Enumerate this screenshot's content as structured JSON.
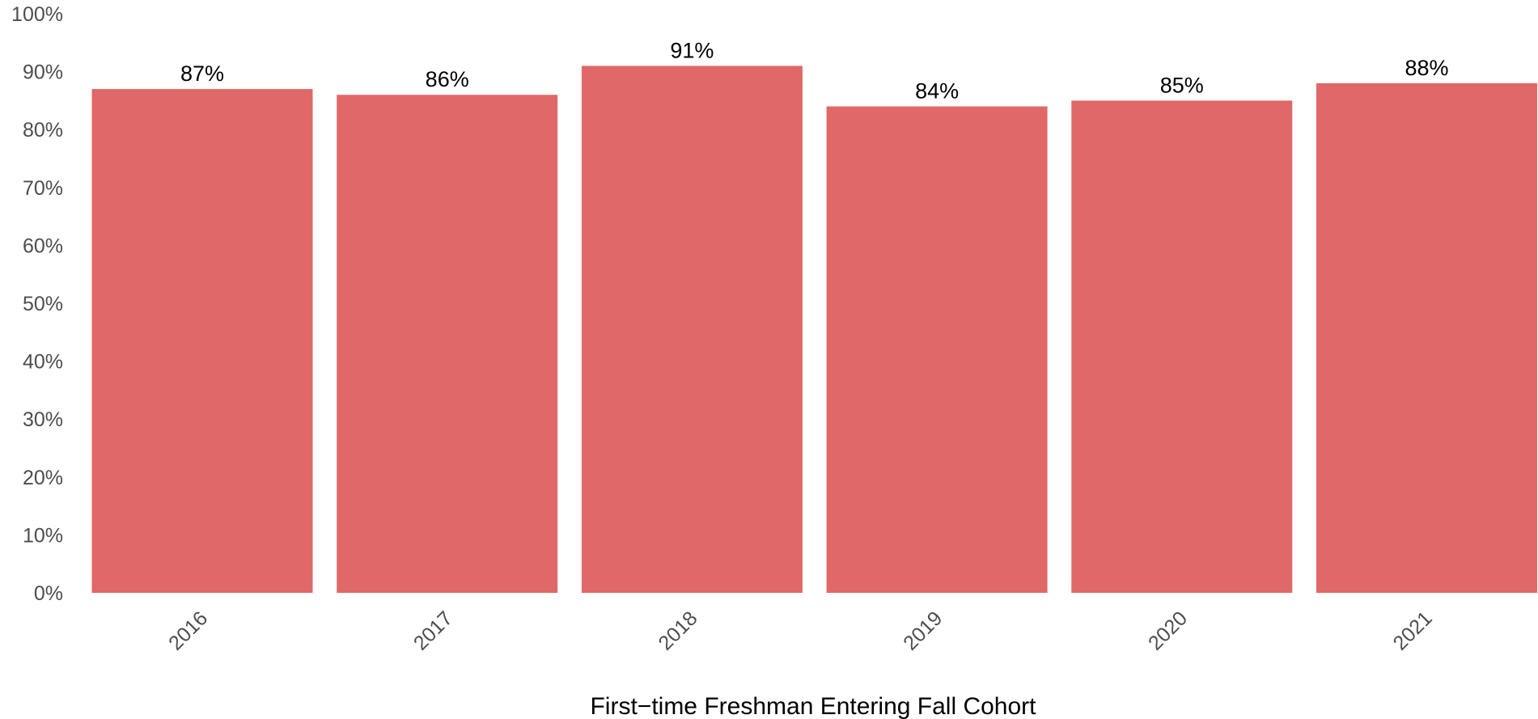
{
  "chart_data": {
    "type": "bar",
    "categories": [
      "2016",
      "2017",
      "2018",
      "2019",
      "2020",
      "2021"
    ],
    "values": [
      87,
      86,
      91,
      84,
      85,
      88
    ],
    "data_labels": [
      "87%",
      "86%",
      "91%",
      "84%",
      "85%",
      "88%"
    ],
    "xlabel": "First−time Freshman Entering Fall Cohort",
    "ylabel": "",
    "ylim": [
      0,
      100
    ],
    "y_ticks": [
      0,
      10,
      20,
      30,
      40,
      50,
      60,
      70,
      80,
      90,
      100
    ],
    "y_tick_labels": [
      "0%",
      "10%",
      "20%",
      "30%",
      "40%",
      "50%",
      "60%",
      "70%",
      "80%",
      "90%",
      "100%"
    ],
    "bar_color": "#e06868",
    "grid": false,
    "legend": "none"
  }
}
